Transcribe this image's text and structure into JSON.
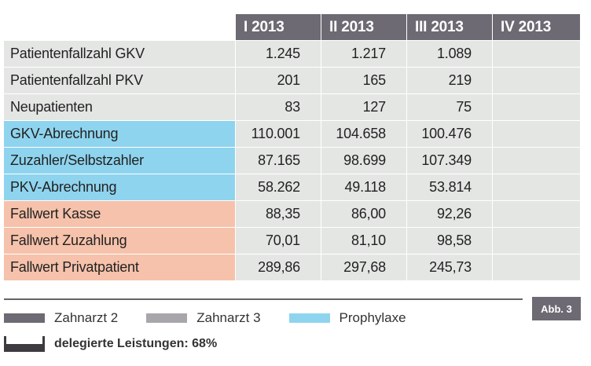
{
  "table": {
    "headers": [
      "I 2013",
      "II 2013",
      "III 2013",
      "IV 2013"
    ],
    "rows": [
      {
        "label": "Patientenfallzahl GKV",
        "values": [
          "1.245",
          "1.217",
          "1.089",
          ""
        ],
        "group": "grey"
      },
      {
        "label": "Patientenfallzahl PKV",
        "values": [
          "201",
          "165",
          "219",
          ""
        ],
        "group": "grey"
      },
      {
        "label": "Neupatienten",
        "values": [
          "83",
          "127",
          "75",
          ""
        ],
        "group": "grey"
      },
      {
        "label": "GKV-Abrechnung",
        "values": [
          "110.001",
          "104.658",
          "100.476",
          ""
        ],
        "group": "blue"
      },
      {
        "label": "Zuzahler/Selbstzahler",
        "values": [
          "87.165",
          "98.699",
          "107.349",
          ""
        ],
        "group": "blue"
      },
      {
        "label": "PKV-Abrechnung",
        "values": [
          "58.262",
          "49.118",
          "53.814",
          ""
        ],
        "group": "blue"
      },
      {
        "label": "Fallwert Kasse",
        "values": [
          "88,35",
          "86,00",
          "92,26",
          ""
        ],
        "group": "peach"
      },
      {
        "label": "Fallwert Zuzahlung",
        "values": [
          "70,01",
          "81,10",
          "98,58",
          ""
        ],
        "group": "peach"
      },
      {
        "label": "Fallwert Privatpatient",
        "values": [
          "289,86",
          "297,68",
          "245,73",
          ""
        ],
        "group": "peach"
      }
    ]
  },
  "figure_label": "Abb. 3",
  "legend": [
    {
      "label": "Zahnarzt 2",
      "color": "#6d6a73"
    },
    {
      "label": "Zahnarzt 3",
      "color": "#a8a6ab"
    },
    {
      "label": "Prophylaxe",
      "color": "#8fd4ee"
    }
  ],
  "delegated": {
    "label": "delegierte Leistungen: 68%",
    "color": "#3d3a40"
  }
}
